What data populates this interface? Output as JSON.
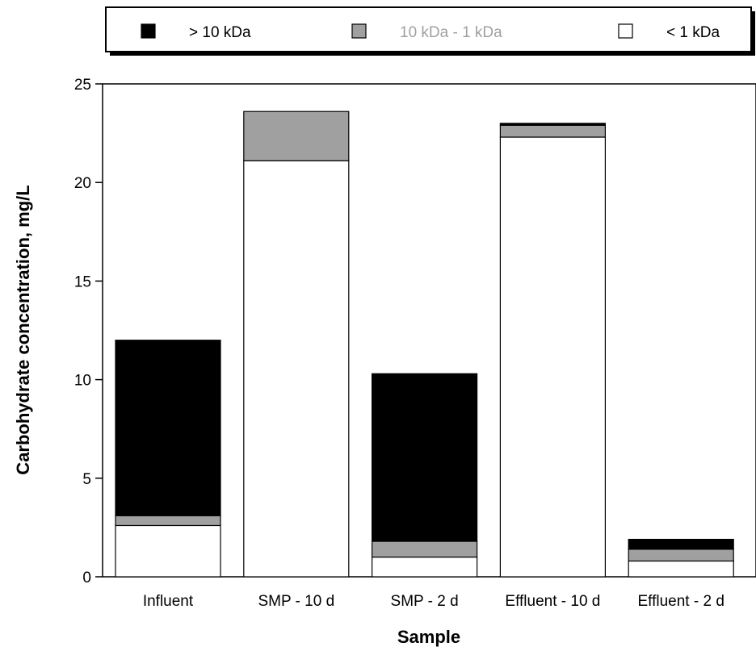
{
  "chart_data": {
    "type": "bar",
    "stacked": true,
    "categories": [
      "Influent",
      "SMP - 10 d",
      "SMP - 2 d",
      "Effluent - 10 d",
      "Effluent - 2 d"
    ],
    "series": [
      {
        "name": "< 1 kDa",
        "color": "#ffffff",
        "values": [
          2.6,
          21.1,
          1.0,
          22.3,
          0.8
        ]
      },
      {
        "name": "10 kDa - 1 kDa",
        "color": "#a0a0a0",
        "values": [
          0.5,
          2.5,
          0.8,
          0.6,
          0.6
        ]
      },
      {
        "name": "> 10 kDa",
        "color": "#000000",
        "values": [
          8.9,
          0.0,
          8.5,
          0.1,
          0.5
        ]
      }
    ],
    "legend_order": [
      "> 10 kDa",
      "10 kDa - 1 kDa",
      "< 1 kDa"
    ],
    "legend_text_colors": [
      "#000000",
      "#a0a0a0",
      "#000000"
    ],
    "legend_position": "top",
    "xlabel": "Sample",
    "ylabel": "Carbohydrate concentration, mg/L",
    "ylim": [
      0,
      25
    ],
    "yticks": [
      0,
      5,
      10,
      15,
      20,
      25
    ],
    "grid": false
  }
}
